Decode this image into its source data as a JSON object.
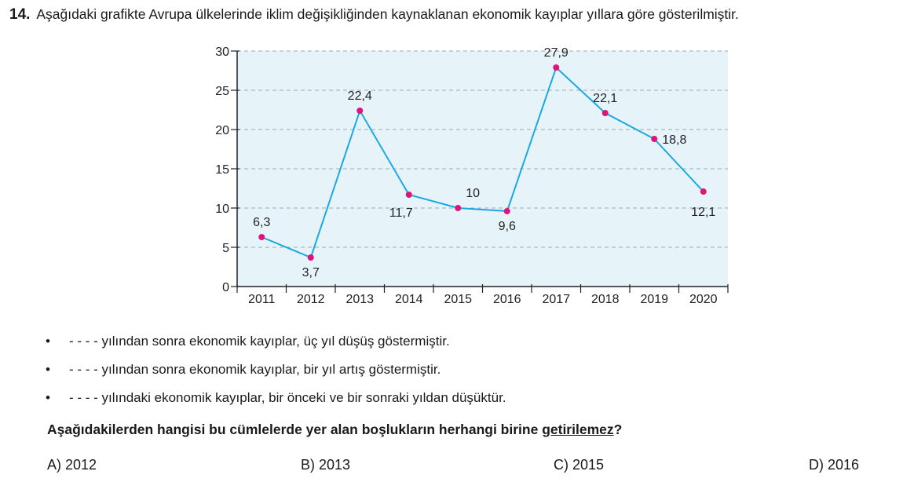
{
  "question": {
    "number": "14.",
    "text": "Aşağıdaki grafikte Avrupa ülkelerinde iklim değişikliğinden kaynaklanan ekonomik kayıplar yıllara göre gösterilmiştir."
  },
  "chart_data": {
    "type": "line",
    "categories": [
      "2011",
      "2012",
      "2013",
      "2014",
      "2015",
      "2016",
      "2017",
      "2018",
      "2019",
      "2020"
    ],
    "values": [
      6.3,
      3.7,
      22.4,
      11.7,
      10,
      9.6,
      27.9,
      22.1,
      18.8,
      12.1
    ],
    "data_labels": [
      "6,3",
      "3,7",
      "22,4",
      "11,7",
      "10",
      "9,6",
      "27,9",
      "22,1",
      "18,8",
      "12,1"
    ],
    "yticks": [
      "0",
      "5",
      "10",
      "15",
      "20",
      "25",
      "30"
    ],
    "ylim": [
      0,
      30
    ],
    "grid": true,
    "colors": {
      "line": "#1ba8e0",
      "marker": "#e0137a",
      "plot_bg": "#e6f4fa",
      "grid": "#9aa8b0"
    }
  },
  "bullets": [
    {
      "symbol": "•",
      "text": "- - - - yılından sonra ekonomik kayıplar, üç yıl düşüş göstermiştir."
    },
    {
      "symbol": "•",
      "text": "- - - - yılından sonra ekonomik kayıplar, bir yıl artış göstermiştir."
    },
    {
      "symbol": "•",
      "text": "- - - - yılındaki ekonomik kayıplar, bir önceki ve bir sonraki yıldan düşüktür."
    }
  ],
  "prompt": {
    "before": "Aşağıdakilerden hangisi bu cümlelerde yer alan boşlukların herhangi birine ",
    "underlined": "getirilemez",
    "after": "?"
  },
  "options": [
    {
      "text": "A) 2012"
    },
    {
      "text": "B) 2013"
    },
    {
      "text": "C) 2015"
    },
    {
      "text": "D) 2016"
    }
  ]
}
